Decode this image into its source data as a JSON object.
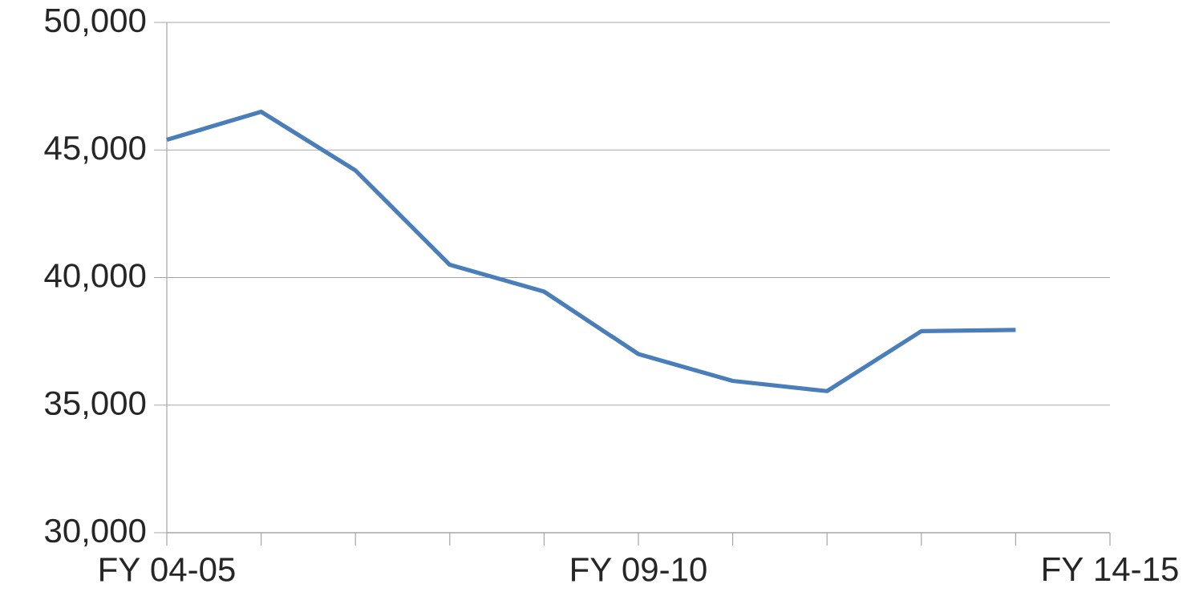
{
  "chart_data": {
    "type": "line",
    "categories": [
      "FY 04-05",
      null,
      null,
      null,
      null,
      "FY 09-10",
      null,
      null,
      null,
      null,
      "FY 14-15"
    ],
    "series": [
      {
        "color": "#4a7ebb",
        "values": [
          45400,
          46500,
          44200,
          40500,
          39450,
          37000,
          35950,
          35550,
          37900,
          37950,
          null
        ]
      }
    ],
    "ylim": [
      30000,
      50000
    ],
    "yticks": [
      {
        "value": 30000,
        "label": "30,000"
      },
      {
        "value": 35000,
        "label": "35,000"
      },
      {
        "value": 40000,
        "label": "40,000"
      },
      {
        "value": 45000,
        "label": "45,000"
      },
      {
        "value": 50000,
        "label": "50,000"
      }
    ],
    "grid": "y",
    "marker": "none",
    "line_style": "solid"
  }
}
